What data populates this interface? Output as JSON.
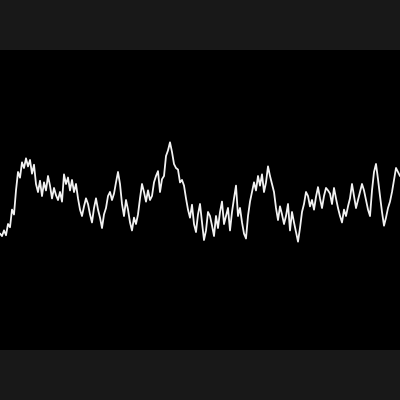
{
  "colors": {
    "letterbox": "#181818",
    "background": "#000000",
    "signal": "#f2f2f2"
  },
  "chart_data": {
    "type": "line",
    "title": "",
    "xlabel": "",
    "ylabel": "",
    "grid": false,
    "legend": "none",
    "xlim": [
      0,
      100
    ],
    "ylim": [
      -1,
      1
    ],
    "x": [
      0,
      0.5,
      1,
      1.5,
      2,
      2.5,
      3,
      3.5,
      4,
      4.5,
      5,
      5.5,
      6,
      6.5,
      7,
      7.5,
      8,
      8.5,
      9,
      9.5,
      10,
      10.5,
      11,
      11.5,
      12,
      12.5,
      13,
      13.5,
      14,
      14.5,
      15,
      15.5,
      16,
      16.5,
      17,
      17.5,
      18,
      18.5,
      19,
      19.5,
      20,
      20.5,
      21,
      21.5,
      22,
      22.5,
      23,
      23.5,
      24,
      24.5,
      25,
      25.5,
      26,
      26.5,
      27,
      27.5,
      28,
      28.5,
      29,
      29.5,
      30,
      30.5,
      31,
      31.5,
      32,
      32.5,
      33,
      33.5,
      34,
      34.5,
      35,
      35.5,
      36,
      36.5,
      37,
      37.5,
      38,
      38.5,
      39,
      39.5,
      40,
      40.5,
      41,
      41.5,
      42,
      42.5,
      43,
      43.5,
      44,
      44.5,
      45,
      45.5,
      46,
      46.5,
      47,
      47.5,
      48,
      48.5,
      49,
      49.5,
      50,
      50.5,
      51,
      51.5,
      52,
      52.5,
      53,
      53.5,
      54,
      54.5,
      55,
      55.5,
      56,
      56.5,
      57,
      57.5,
      58,
      58.5,
      59,
      59.5,
      60,
      60.5,
      61,
      61.5,
      62,
      62.5,
      63,
      63.5,
      64,
      64.5,
      65,
      65.5,
      66,
      66.5,
      67,
      67.5,
      68,
      68.5,
      69,
      69.5,
      70,
      70.5,
      71,
      71.5,
      72,
      72.5,
      73,
      73.5,
      74,
      74.5,
      75,
      75.5,
      76,
      76.5,
      77,
      77.5,
      78,
      78.5,
      79,
      79.5,
      80,
      80.5,
      81,
      81.5,
      82,
      82.5,
      83,
      83.5,
      84,
      84.5,
      85,
      85.5,
      86,
      86.5,
      87,
      87.5,
      88,
      88.5,
      89,
      89.5,
      90,
      90.5,
      91,
      91.5,
      92,
      92.5,
      93,
      93.5,
      94,
      94.5,
      95,
      95.5,
      96,
      96.5,
      97,
      97.5,
      98,
      98.5,
      99,
      99.5,
      100
    ],
    "series": [
      {
        "values": [
          -0.42,
          -0.45,
          -0.38,
          -0.44,
          -0.3,
          -0.34,
          -0.12,
          -0.18,
          0.12,
          0.35,
          0.28,
          0.47,
          0.4,
          0.52,
          0.42,
          0.5,
          0.33,
          0.44,
          0.2,
          0.1,
          0.24,
          0.05,
          0.22,
          0.12,
          0.3,
          0.18,
          0.02,
          0.15,
          0.06,
          0.0,
          0.1,
          -0.02,
          0.32,
          0.2,
          0.28,
          0.12,
          0.25,
          0.1,
          0.2,
          0.02,
          -0.12,
          -0.2,
          -0.08,
          0.02,
          -0.05,
          -0.18,
          -0.28,
          -0.1,
          0.02,
          -0.12,
          -0.22,
          -0.35,
          -0.18,
          -0.1,
          0.05,
          0.1,
          0.0,
          0.08,
          0.22,
          0.35,
          0.2,
          -0.05,
          -0.2,
          0.0,
          -0.12,
          -0.28,
          -0.38,
          -0.22,
          -0.3,
          -0.18,
          0.02,
          0.2,
          0.1,
          -0.02,
          0.12,
          0.0,
          0.05,
          0.22,
          0.3,
          0.36,
          0.1,
          0.26,
          0.3,
          0.55,
          0.62,
          0.72,
          0.6,
          0.45,
          0.4,
          0.38,
          0.22,
          0.25,
          0.18,
          0.02,
          -0.12,
          -0.22,
          -0.06,
          -0.3,
          -0.4,
          -0.18,
          -0.05,
          -0.28,
          -0.5,
          -0.38,
          -0.15,
          -0.2,
          -0.32,
          -0.45,
          -0.2,
          -0.35,
          -0.15,
          -0.02,
          -0.3,
          -0.2,
          -0.1,
          -0.38,
          -0.15,
          0.02,
          0.18,
          -0.2,
          -0.1,
          -0.28,
          -0.42,
          -0.48,
          -0.2,
          -0.02,
          0.1,
          0.22,
          0.12,
          0.3,
          0.18,
          0.32,
          0.1,
          0.22,
          0.42,
          0.3,
          0.2,
          0.1,
          -0.1,
          -0.25,
          -0.08,
          -0.18,
          -0.3,
          -0.2,
          -0.05,
          -0.38,
          -0.15,
          -0.28,
          -0.4,
          -0.52,
          -0.35,
          -0.15,
          -0.05,
          0.1,
          0.05,
          -0.08,
          0.0,
          -0.12,
          0.04,
          0.16,
          0.02,
          -0.1,
          0.05,
          0.15,
          0.12,
          0.08,
          -0.05,
          0.15,
          0.02,
          -0.1,
          -0.2,
          -0.28,
          -0.12,
          -0.2,
          -0.08,
          0.02,
          0.2,
          0.05,
          -0.1,
          0.0,
          0.1,
          0.2,
          0.12,
          0.0,
          -0.12,
          -0.2,
          0.12,
          0.35,
          0.45,
          0.26,
          0.05,
          -0.15,
          -0.32,
          -0.22,
          -0.1,
          -0.02,
          0.1,
          0.25,
          0.4,
          0.35,
          0.3
        ]
      }
    ]
  }
}
